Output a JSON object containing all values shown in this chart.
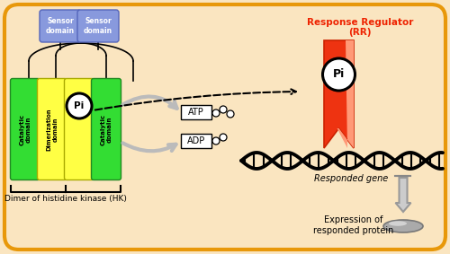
{
  "bg_color": "#FAE5C0",
  "border_color": "#E8980A",
  "sensor_color": "#8899DD",
  "sensor_edge": "#5566BB",
  "catalytic_color": "#33DD33",
  "catalytic_edge": "#228822",
  "dimerization_color": "#FFFF44",
  "dimerization_edge": "#AAAA00",
  "pi_fill": "#FFFFFF",
  "rr_red": "#EE3311",
  "rr_light": "#FF9977",
  "rr_label_color": "#EE2200",
  "gray_arrow": "#BBBBBB",
  "gray_arrow_edge": "#999999",
  "protein_fill": "#AAAAAA",
  "protein_edge": "#777777",
  "hk_label": "Dimer of histidine kinase (HK)",
  "rr_line1": "Response Regulator",
  "rr_line2": "(RR)",
  "responded_gene": "Responded gene",
  "expression_label": "Expression of\nresponded protein",
  "atp_label": "ATP",
  "adp_label": "ADP",
  "pi_label": "Pi",
  "sensor_label": "Sensor\ndomain",
  "catalytic_label": "Catalytic\ndomain",
  "dimerization_label": "Dimerization\ndomain"
}
